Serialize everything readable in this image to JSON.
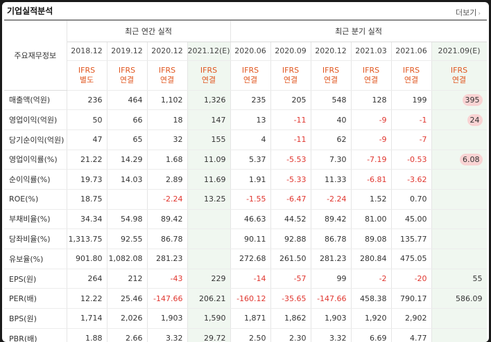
{
  "header": {
    "title": "기업실적분석",
    "more_label": "더보기",
    "more_arrow": "›"
  },
  "table": {
    "row_header_label": "주요재무정보",
    "groups": [
      "최근 연간 실적",
      "최근 분기 실적"
    ],
    "periods": [
      "2018.12",
      "2019.12",
      "2020.12",
      "2021.12(E)",
      "2020.06",
      "2020.09",
      "2020.12",
      "2021.03",
      "2021.06",
      "2021.09(E)"
    ],
    "standards": [
      "IFRS\n별도",
      "IFRS\n연결",
      "IFRS\n연결",
      "IFRS\n연결",
      "IFRS\n연결",
      "IFRS\n연결",
      "IFRS\n연결",
      "IFRS\n연결",
      "IFRS\n연결",
      "IFRS\n연결"
    ],
    "rows": [
      {
        "label": "매출액(억원)",
        "values": [
          "236",
          "464",
          "1,102",
          "1,326",
          "235",
          "205",
          "548",
          "128",
          "199",
          "395"
        ]
      },
      {
        "label": "영업이익(억원)",
        "values": [
          "50",
          "66",
          "18",
          "147",
          "13",
          "-11",
          "40",
          "-9",
          "-1",
          "24"
        ]
      },
      {
        "label": "당기순이익(억원)",
        "values": [
          "47",
          "65",
          "32",
          "155",
          "4",
          "-11",
          "62",
          "-9",
          "-7",
          ""
        ]
      },
      {
        "label": "영업이익률(%)",
        "values": [
          "21.22",
          "14.29",
          "1.68",
          "11.09",
          "5.37",
          "-5.53",
          "7.30",
          "-7.19",
          "-0.53",
          "6.08"
        ]
      },
      {
        "label": "순이익률(%)",
        "values": [
          "19.73",
          "14.03",
          "2.89",
          "11.69",
          "1.91",
          "-5.33",
          "11.33",
          "-6.81",
          "-3.62",
          ""
        ]
      },
      {
        "label": "ROE(%)",
        "values": [
          "18.75",
          "",
          "-2.24",
          "13.25",
          "-1.55",
          "-6.47",
          "-2.24",
          "1.52",
          "0.70",
          ""
        ]
      },
      {
        "label": "부채비율(%)",
        "values": [
          "34.34",
          "54.98",
          "89.42",
          "",
          "46.63",
          "44.52",
          "89.42",
          "81.00",
          "45.00",
          ""
        ]
      },
      {
        "label": "당좌비율(%)",
        "values": [
          "1,313.75",
          "92.55",
          "86.78",
          "",
          "90.11",
          "92.88",
          "86.78",
          "89.08",
          "135.77",
          ""
        ]
      },
      {
        "label": "유보율(%)",
        "values": [
          "901.80",
          "1,082.08",
          "281.23",
          "",
          "272.68",
          "261.50",
          "281.23",
          "280.84",
          "475.05",
          ""
        ]
      },
      {
        "label": "EPS(원)",
        "values": [
          "264",
          "212",
          "-43",
          "229",
          "-14",
          "-57",
          "99",
          "-2",
          "-20",
          "55"
        ]
      },
      {
        "label": "PER(배)",
        "values": [
          "12.22",
          "25.46",
          "-147.66",
          "206.21",
          "-160.12",
          "-35.65",
          "-147.66",
          "458.38",
          "790.17",
          "586.09"
        ]
      },
      {
        "label": "BPS(원)",
        "values": [
          "1,714",
          "2,026",
          "1,903",
          "1,590",
          "1,871",
          "1,862",
          "1,903",
          "1,920",
          "2,902",
          ""
        ]
      },
      {
        "label": "PBR(배)",
        "values": [
          "1.88",
          "2.66",
          "3.32",
          "29.72",
          "2.50",
          "2.30",
          "3.32",
          "6.69",
          "4.77",
          ""
        ]
      }
    ],
    "highlighted_cells": [
      [
        0,
        9
      ],
      [
        1,
        9
      ],
      [
        3,
        9
      ]
    ],
    "group_break_before_rows": [
      3,
      6,
      9
    ],
    "estimate_columns": [
      3,
      9
    ],
    "colors": {
      "negative": "#e0362f",
      "standard": "#e0561f",
      "estimate_bg": "#f0f7f0",
      "highlight": "#f9d3d3"
    }
  }
}
